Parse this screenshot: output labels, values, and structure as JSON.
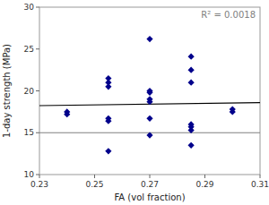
{
  "chart_data": {
    "type": "scatter",
    "xlabel": "FA (vol fraction)",
    "ylabel": "1-day strength (MPa)",
    "series": [
      {
        "type": "scatter",
        "color": "#00008B",
        "marker": "diamond",
        "x": [
          0.24,
          0.24,
          0.255,
          0.255,
          0.255,
          0.255,
          0.255,
          0.255,
          0.27,
          0.27,
          0.27,
          0.27,
          0.27,
          0.27,
          0.27,
          0.285,
          0.285,
          0.285,
          0.285,
          0.285,
          0.285,
          0.285,
          0.3,
          0.3
        ],
        "values": [
          17.5,
          17.2,
          21.5,
          21.0,
          20.5,
          16.7,
          16.4,
          12.8,
          26.2,
          20.0,
          19.8,
          19.0,
          18.7,
          16.7,
          14.7,
          24.1,
          22.5,
          21.0,
          16.0,
          15.7,
          15.3,
          13.5,
          17.8,
          17.5
        ]
      },
      {
        "type": "line",
        "color": "black",
        "x": [
          0.23,
          0.31
        ],
        "values": [
          18.2357,
          18.6002
        ]
      },
      {
        "type": "line",
        "color": "#808080",
        "x": [
          0.23,
          0.31
        ],
        "values": [
          15,
          15
        ]
      }
    ],
    "annotations": [
      {
        "text": "R² = 0.0018",
        "color": "#808080"
      }
    ],
    "xlim": [
      0.23,
      0.31
    ],
    "ylim": [
      10,
      30
    ],
    "xticks": [
      0.23,
      0.25,
      0.27,
      0.29,
      0.31
    ],
    "yticks": [
      10,
      15,
      20,
      25,
      30
    ],
    "grid": false
  }
}
